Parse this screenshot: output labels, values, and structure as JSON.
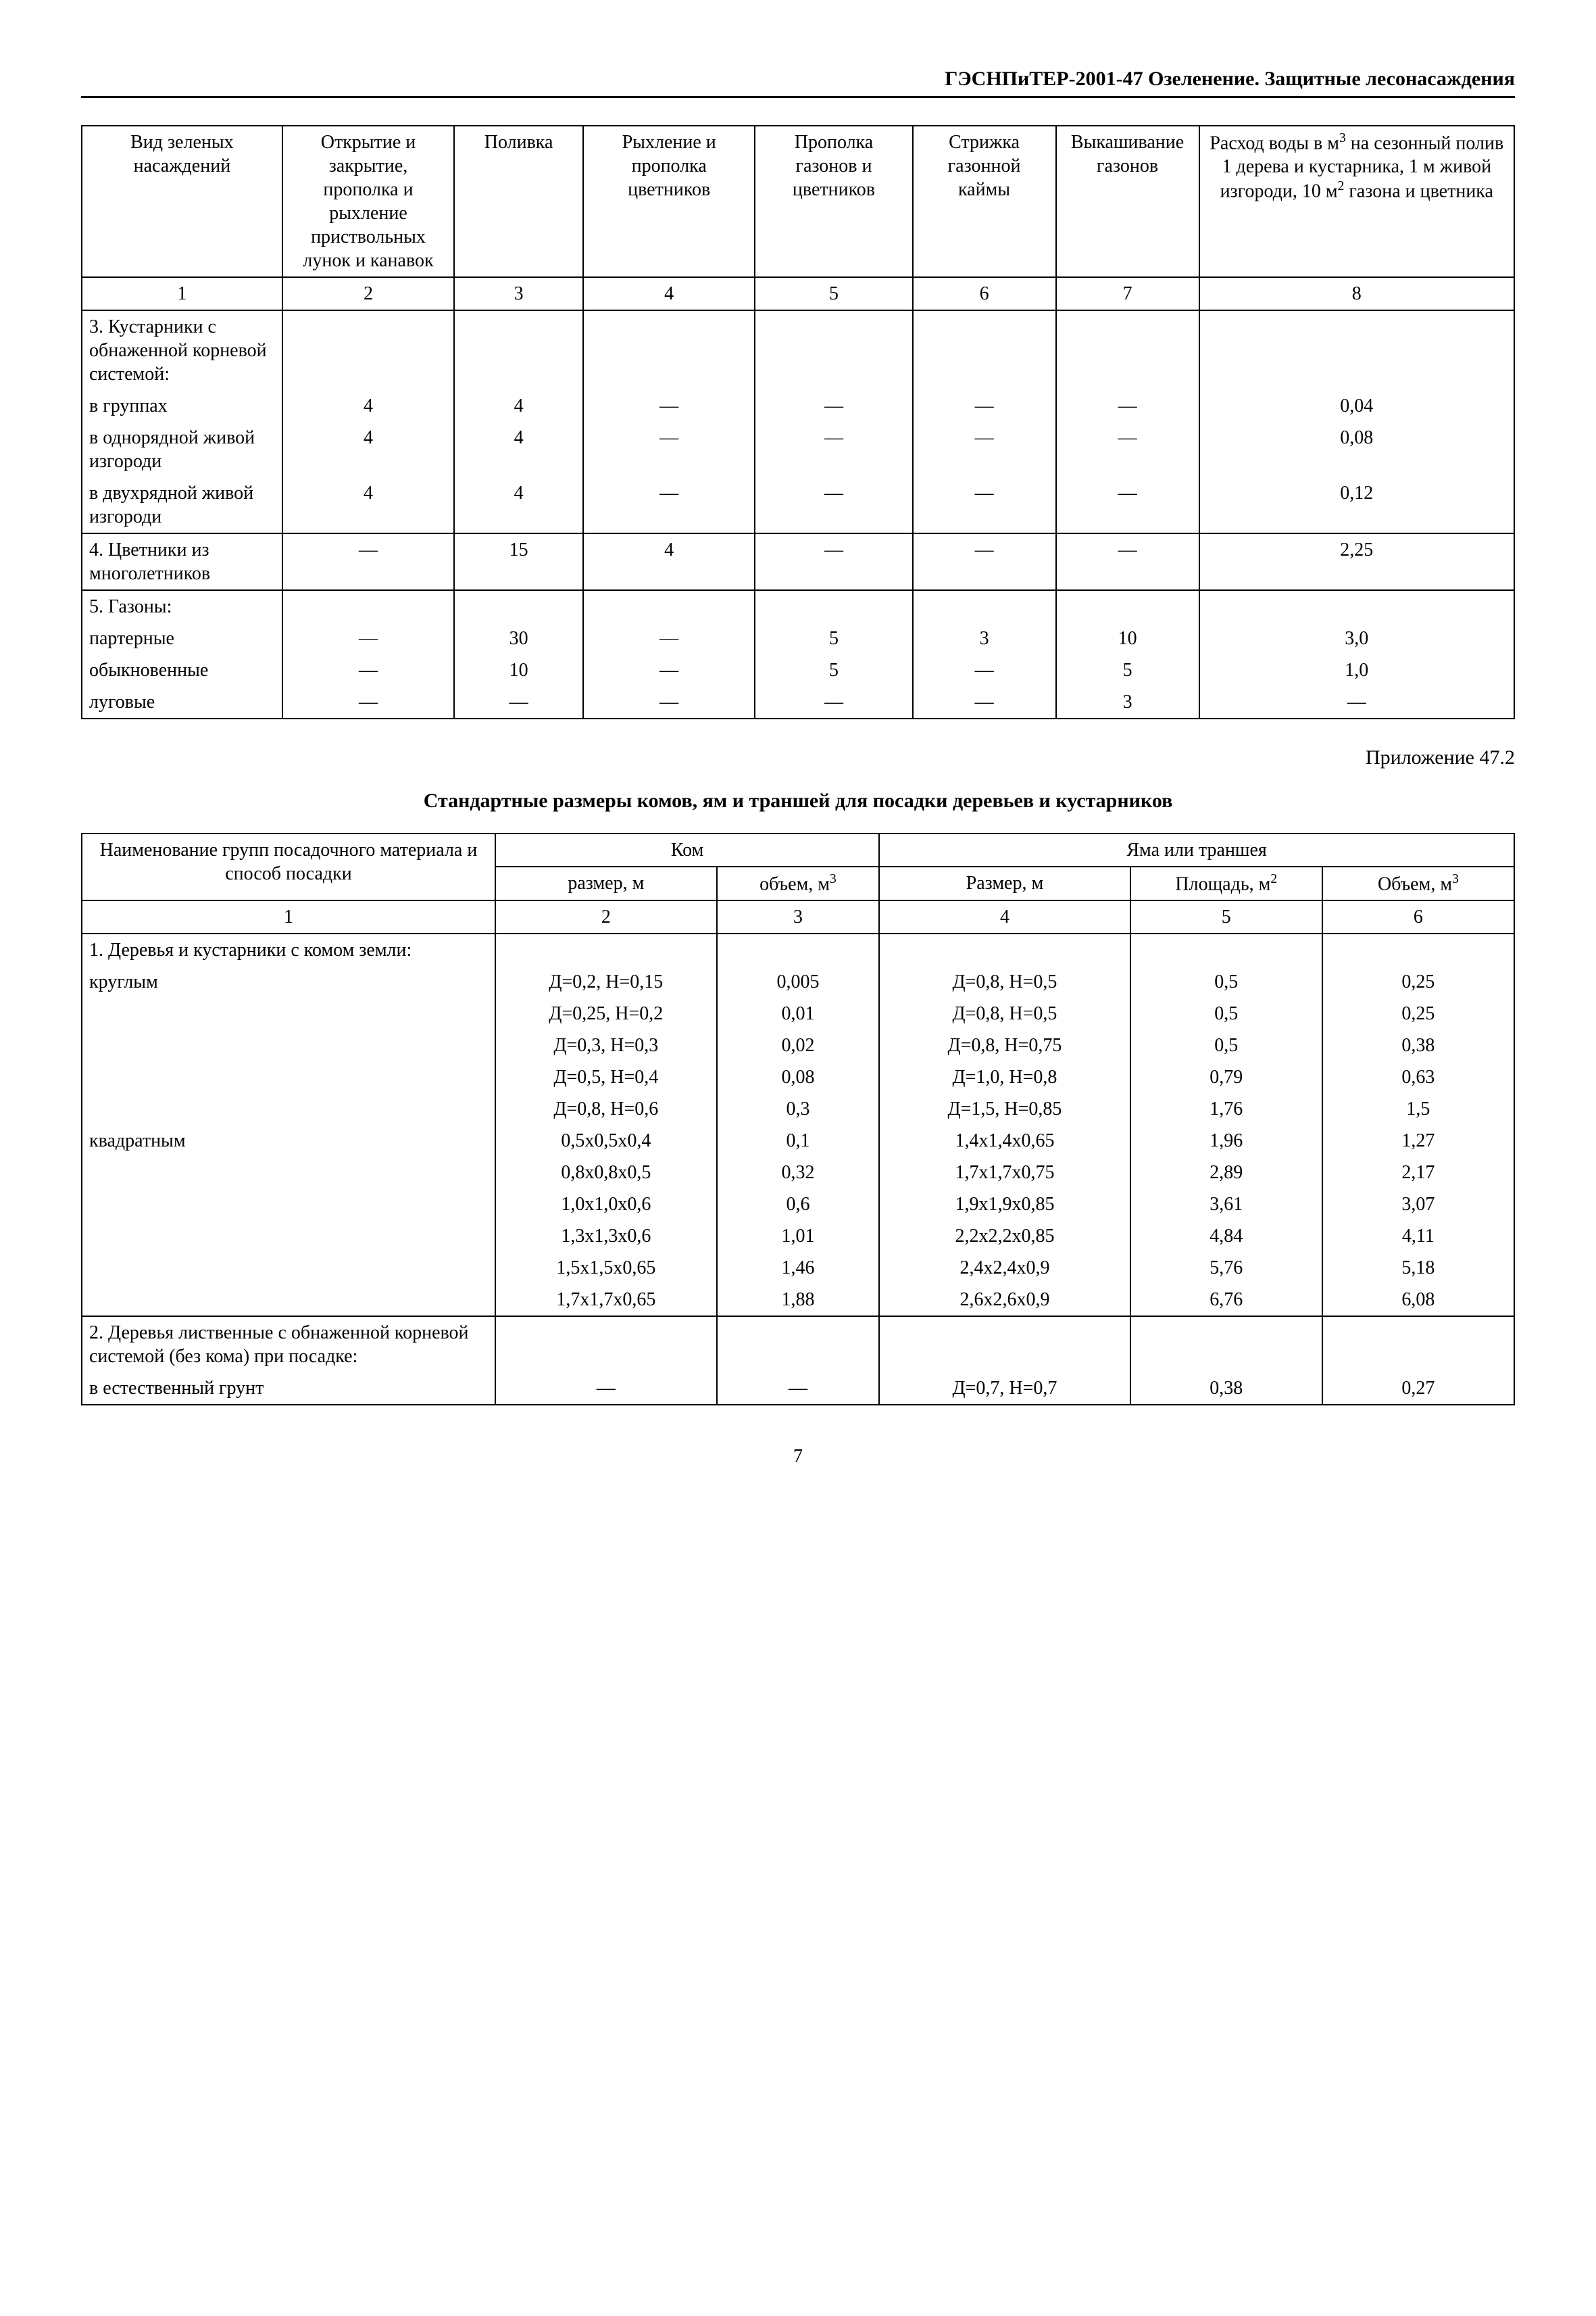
{
  "header": "ГЭСНПиТЕР-2001-47 Озеленение. Защитные лесонасаждения",
  "page_number": "7",
  "appendix_label": "Приложение 47.2",
  "table2_title": "Стандартные размеры комов, ям и траншей для посадки деревьев и кустарников",
  "table1": {
    "headers": {
      "c1": "Вид зеленых насаждений",
      "c2": "Открытие и закрытие, прополка и рыхление приствольных лунок и канавок",
      "c3": "Поливка",
      "c4": "Рыхление и прополка цветников",
      "c5": "Прополка газонов и цветников",
      "c6": "Стрижка газонной каймы",
      "c7": "Выкашивание газонов",
      "c8_a": "Расход воды в м",
      "c8_b": " на сезонный полив 1 дерева и кустарника, 1 м живой изгороди, 10 м",
      "c8_c": " газона и цветника"
    },
    "nums": {
      "n1": "1",
      "n2": "2",
      "n3": "3",
      "n4": "4",
      "n5": "5",
      "n6": "6",
      "n7": "7",
      "n8": "8"
    },
    "rows": [
      {
        "label": "3. Кустарники с обнаженной корневой системой:",
        "c2": "",
        "c3": "",
        "c4": "",
        "c5": "",
        "c6": "",
        "c7": "",
        "c8": ""
      },
      {
        "label": "в группах",
        "c2": "4",
        "c3": "4",
        "c4": "—",
        "c5": "—",
        "c6": "—",
        "c7": "—",
        "c8": "0,04"
      },
      {
        "label": "в однорядной живой изгороди",
        "c2": "4",
        "c3": "4",
        "c4": "—",
        "c5": "—",
        "c6": "—",
        "c7": "—",
        "c8": "0,08"
      },
      {
        "label": "в двухрядной живой изгороди",
        "c2": "4",
        "c3": "4",
        "c4": "—",
        "c5": "—",
        "c6": "—",
        "c7": "—",
        "c8": "0,12"
      },
      {
        "label": "4.   Цветники из многолетников",
        "c2": "—",
        "c3": "15",
        "c4": "4",
        "c5": "—",
        "c6": "—",
        "c7": "—",
        "c8": "2,25",
        "topborder": true
      },
      {
        "label": "5. Газоны:",
        "c2": "",
        "c3": "",
        "c4": "",
        "c5": "",
        "c6": "",
        "c7": "",
        "c8": "",
        "topborder": true
      },
      {
        "label": "партерные",
        "c2": "—",
        "c3": "30",
        "c4": "—",
        "c5": "5",
        "c6": "3",
        "c7": "10",
        "c8": "3,0"
      },
      {
        "label": "обыкновенные",
        "c2": "—",
        "c3": "10",
        "c4": "—",
        "c5": "5",
        "c6": "—",
        "c7": "5",
        "c8": "1,0"
      },
      {
        "label": "луговые",
        "c2": "—",
        "c3": "—",
        "c4": "—",
        "c5": "—",
        "c6": "—",
        "c7": "3",
        "c8": "—",
        "botborder": true
      }
    ]
  },
  "table2": {
    "head": {
      "c1": "Наименование групп посадочного материала и способ посадки",
      "kom": "Ком",
      "yama": "Яма или траншея",
      "c2": "размер, м",
      "c3a": "объем, м",
      "c4": "Размер, м",
      "c5a": "Площадь, м",
      "c6a": "Объем, м"
    },
    "nums": {
      "n1": "1",
      "n2": "2",
      "n3": "3",
      "n4": "4",
      "n5": "5",
      "n6": "6"
    },
    "rows": [
      {
        "label": "1. Деревья и кустарники с комом земли:",
        "c2": "",
        "c3": "",
        "c4": "",
        "c5": "",
        "c6": ""
      },
      {
        "label": "круглым",
        "c2": "Д=0,2, Н=0,15",
        "c3": "0,005",
        "c4": "Д=0,8, Н=0,5",
        "c5": "0,5",
        "c6": "0,25"
      },
      {
        "label": "",
        "c2": "Д=0,25, Н=0,2",
        "c3": "0,01",
        "c4": "Д=0,8, Н=0,5",
        "c5": "0,5",
        "c6": "0,25"
      },
      {
        "label": "",
        "c2": "Д=0,3, Н=0,3",
        "c3": "0,02",
        "c4": "Д=0,8, Н=0,75",
        "c5": "0,5",
        "c6": "0,38"
      },
      {
        "label": "",
        "c2": "Д=0,5, Н=0,4",
        "c3": "0,08",
        "c4": "Д=1,0, Н=0,8",
        "c5": "0,79",
        "c6": "0,63"
      },
      {
        "label": "",
        "c2": "Д=0,8, Н=0,6",
        "c3": "0,3",
        "c4": "Д=1,5, Н=0,85",
        "c5": "1,76",
        "c6": "1,5"
      },
      {
        "label": "квадратным",
        "c2": "0,5х0,5х0,4",
        "c3": "0,1",
        "c4": "1,4х1,4х0,65",
        "c5": "1,96",
        "c6": "1,27"
      },
      {
        "label": "",
        "c2": "0,8х0,8х0,5",
        "c3": "0,32",
        "c4": "1,7х1,7х0,75",
        "c5": "2,89",
        "c6": "2,17"
      },
      {
        "label": "",
        "c2": "1,0х1,0х0,6",
        "c3": "0,6",
        "c4": "1,9х1,9х0,85",
        "c5": "3,61",
        "c6": "3,07"
      },
      {
        "label": "",
        "c2": "1,3х1,3х0,6",
        "c3": "1,01",
        "c4": "2,2х2,2х0,85",
        "c5": "4,84",
        "c6": "4,11"
      },
      {
        "label": "",
        "c2": "1,5х1,5х0,65",
        "c3": "1,46",
        "c4": "2,4х2,4х0,9",
        "c5": "5,76",
        "c6": "5,18"
      },
      {
        "label": "",
        "c2": "1,7х1,7х0,65",
        "c3": "1,88",
        "c4": "2,6х2,6х0,9",
        "c5": "6,76",
        "c6": "6,08"
      },
      {
        "label": "2. Деревья лиственные с обнаженной корневой системой (без кома) при посадке:",
        "c2": "",
        "c3": "",
        "c4": "",
        "c5": "",
        "c6": "",
        "topborder": true
      },
      {
        "label": "в естественный грунт",
        "c2": "—",
        "c3": "—",
        "c4": "Д=0,7, Н=0,7",
        "c5": "0,38",
        "c6": "0,27",
        "botborder": true
      }
    ]
  }
}
